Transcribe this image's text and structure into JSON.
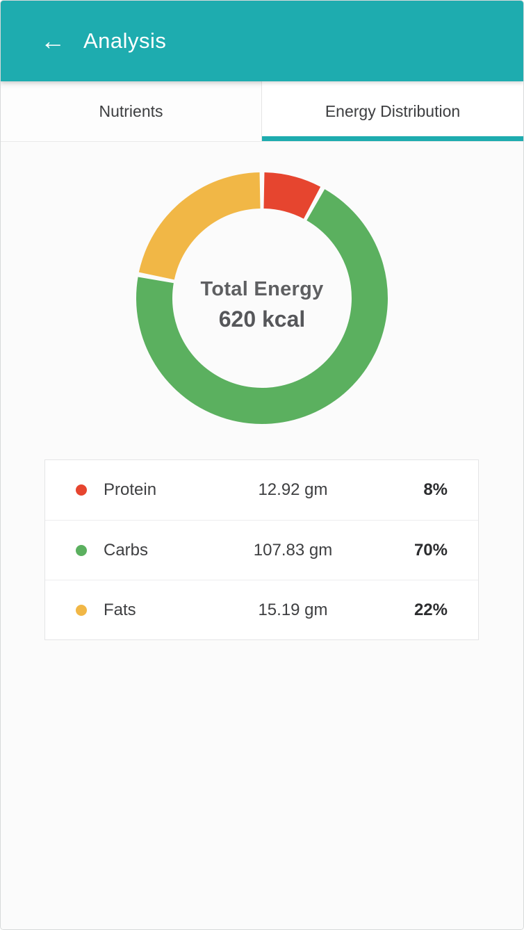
{
  "colors": {
    "accent": "#1eacaf",
    "protein": "#e6452f",
    "carbs": "#5bb05f",
    "fats": "#f1b746"
  },
  "header": {
    "back_icon": "arrow-left",
    "back_glyph": "←",
    "title": "Analysis"
  },
  "tabs": [
    {
      "label": "Nutrients",
      "active": false
    },
    {
      "label": "Energy Distribution",
      "active": true
    }
  ],
  "chart_data": {
    "type": "pie",
    "variant": "donut",
    "direction": "clockwise",
    "start_angle_deg": 0,
    "center": {
      "label": "Total Energy",
      "value": "620 kcal"
    },
    "series": [
      {
        "name": "Protein",
        "amount": "12.92 gm",
        "percent": 8,
        "percent_label": "8%",
        "color": "#e6452f"
      },
      {
        "name": "Carbs",
        "amount": "107.83 gm",
        "percent": 70,
        "percent_label": "70%",
        "color": "#5bb05f"
      },
      {
        "name": "Fats",
        "amount": "15.19 gm",
        "percent": 22,
        "percent_label": "22%",
        "color": "#f1b746"
      }
    ]
  }
}
